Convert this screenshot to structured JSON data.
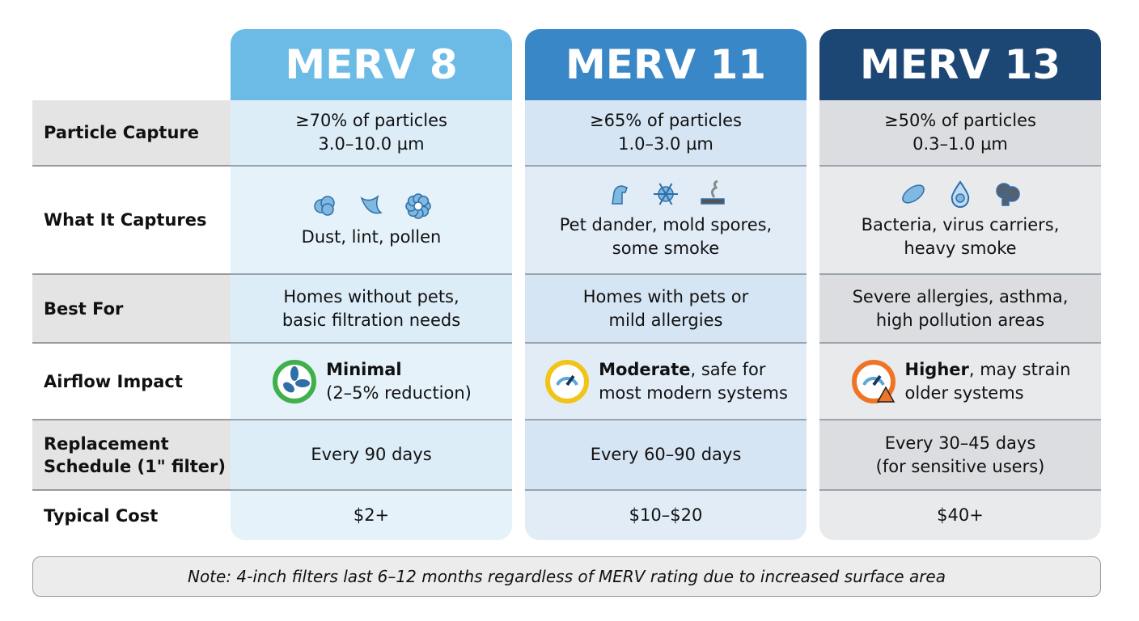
{
  "row_labels": [
    "Particle Capture",
    "What It Captures",
    "Best For",
    "Airflow Impact",
    "Replacement Schedule (1\" filter)",
    "Typical Cost"
  ],
  "columns": [
    {
      "title": "MERV 8",
      "header_color": "#6bbbe6",
      "capture_1": "≥70% of particles",
      "capture_2": "3.0–10.0 µm",
      "icons": [
        "dust-icon",
        "lint-icon",
        "pollen-icon"
      ],
      "captures_1": "Dust, lint, pollen",
      "captures_2": "",
      "best_1": "Homes without pets,",
      "best_2": "basic filtration needs",
      "airflow_bold": "Minimal",
      "airflow_rest": "",
      "airflow_2": "(2–5% reduction)",
      "airflow_icon": "fan-icon",
      "airflow_color": "#3fb04a",
      "replace_1": "Every 90 days",
      "replace_2": "",
      "cost": "$2+"
    },
    {
      "title": "MERV 11",
      "header_color": "#3a87c8",
      "capture_1": "≥65% of particles",
      "capture_2": "1.0–3.0 µm",
      "icons": [
        "pet-dander-icon",
        "mold-spore-icon",
        "smoke-icon"
      ],
      "captures_1": "Pet dander, mold spores,",
      "captures_2": "some smoke",
      "best_1": "Homes with pets or",
      "best_2": "mild allergies",
      "airflow_bold": "Moderate",
      "airflow_rest": ", safe for",
      "airflow_2": "most modern systems",
      "airflow_icon": "gauge-icon",
      "airflow_color": "#f2c418",
      "replace_1": "Every 60–90 days",
      "replace_2": "",
      "cost": "$10–$20"
    },
    {
      "title": "MERV 13",
      "header_color": "#1c4775",
      "capture_1": "≥50% of particles",
      "capture_2": "0.3–1.0 µm",
      "icons": [
        "bacteria-icon",
        "virus-droplet-icon",
        "heavy-smoke-icon"
      ],
      "captures_1": "Bacteria, virus carriers,",
      "captures_2": "heavy smoke",
      "best_1": "Severe allergies, asthma,",
      "best_2": "high pollution areas",
      "airflow_bold": "Higher",
      "airflow_rest": ", may strain",
      "airflow_2": "older systems",
      "airflow_icon": "gauge-warning-icon",
      "airflow_color": "#ee7526",
      "replace_1": "Every 30–45 days",
      "replace_2": "(for sensitive users)",
      "cost": "$40+"
    }
  ],
  "note": "Note: 4-inch filters last 6–12 months regardless of MERV rating due to increased surface area"
}
